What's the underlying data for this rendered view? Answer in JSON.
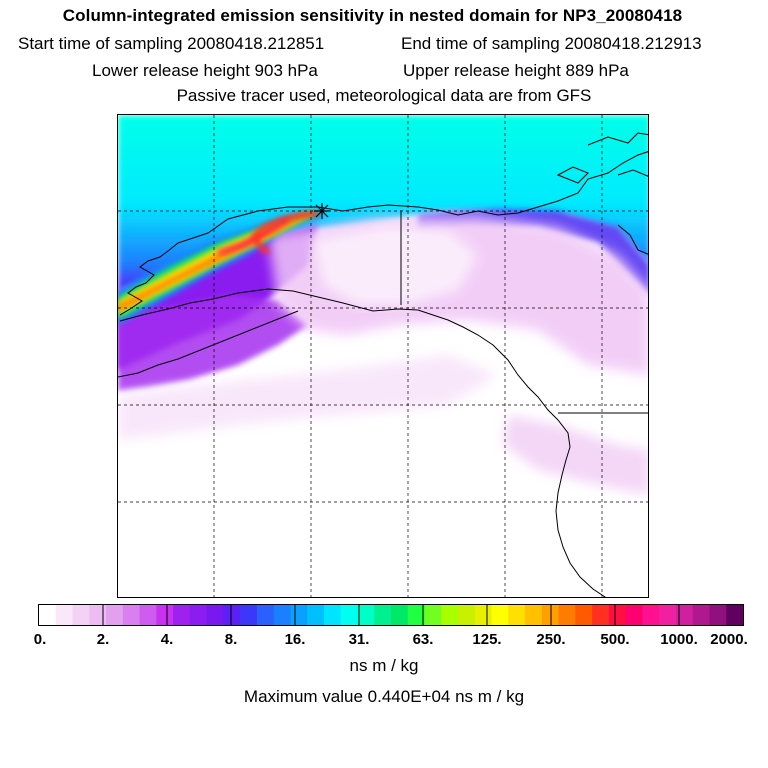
{
  "figure": {
    "title": "Column-integrated emission sensitivity in nested domain for NP3_20080418",
    "start_time": "Start time of sampling 20080418.212851",
    "end_time": "End time of sampling 20080418.212913",
    "lower_release": "Lower release height  903 hPa",
    "upper_release": "Upper release height  889 hPa",
    "tracer_note": "Passive tracer used, meteorological data are from GFS"
  },
  "colorbar": {
    "tick_labels": [
      "0.",
      "2.",
      "4.",
      "8.",
      "16.",
      "31.",
      "63.",
      "125.",
      "250.",
      "500.",
      "1000.",
      "2000."
    ],
    "colors": [
      "#ffffff",
      "#fae8fa",
      "#f4d2f6",
      "#edbcf2",
      "#e2a0ee",
      "#d97ff0",
      "#cf5cf0",
      "#c832ef",
      "#a020f0",
      "#8c1cf0",
      "#7a18f0",
      "#5a20f5",
      "#3c38fa",
      "#2b60ff",
      "#1a80ff",
      "#0aa0ff",
      "#00bfff",
      "#00e5ff",
      "#00fff0",
      "#00ffc8",
      "#00f090",
      "#00e868",
      "#20ff40",
      "#70ff20",
      "#a8ff00",
      "#c8f000",
      "#e8f000",
      "#ffff00",
      "#ffe000",
      "#ffc000",
      "#ffa000",
      "#ff7c00",
      "#ff5a00",
      "#ff3020",
      "#ff1040",
      "#ff0070",
      "#ff1090",
      "#f020a0",
      "#d020a0",
      "#b01890",
      "#901080",
      "#600060"
    ],
    "unit": "ns m / kg",
    "max_value": "Maximum value  0.440E+04 ns m / kg"
  }
}
